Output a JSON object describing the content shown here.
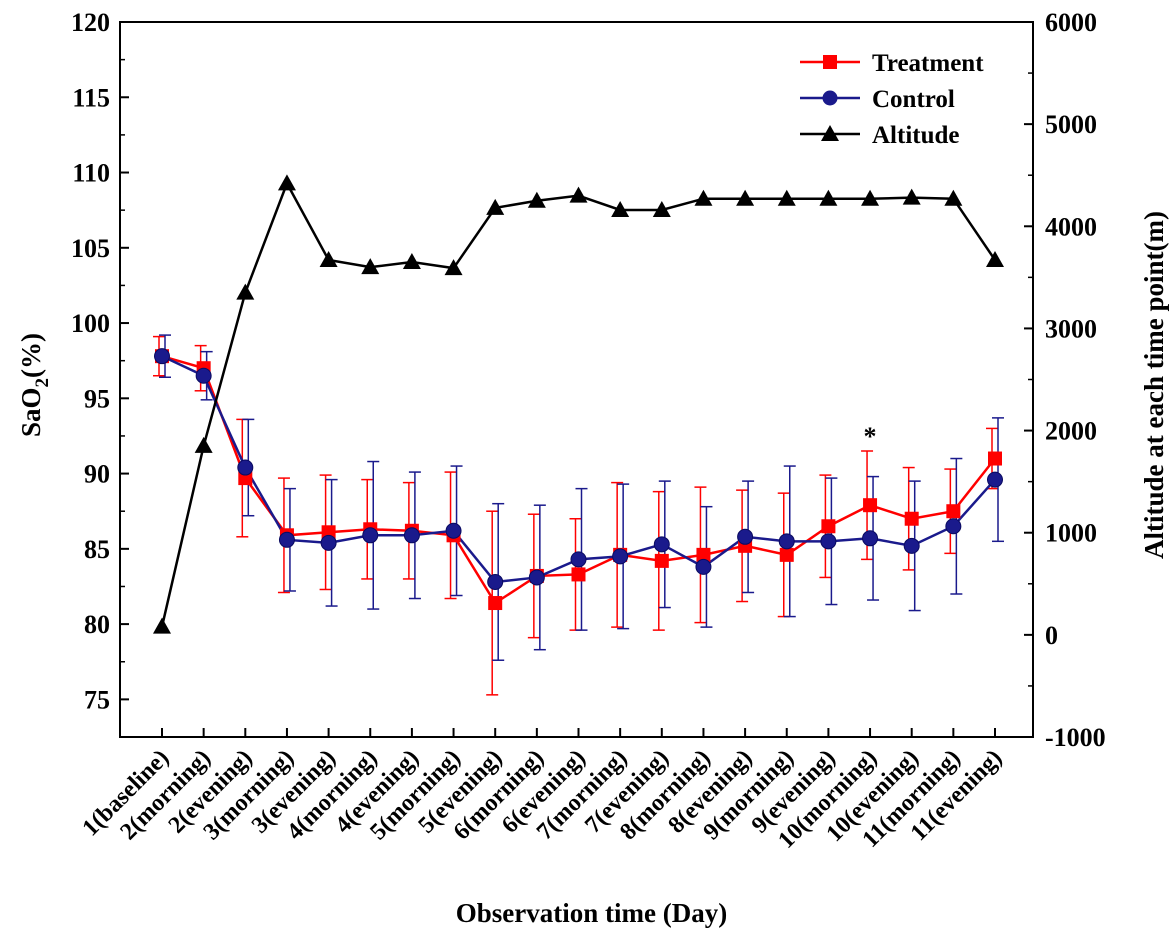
{
  "chart_data": {
    "type": "line",
    "xlabel": "Observation time (Day)",
    "ylabel_left_main": "SaO",
    "ylabel_left_sub": "2",
    "ylabel_left_unit": "(%)",
    "ylabel_right": "Altitude at each time point(m)",
    "categories": [
      "1(baseline)",
      "2(morning)",
      "2(evening)",
      "3(morning)",
      "3(evening)",
      "4(morning)",
      "4(evening)",
      "5(morning)",
      "5(evening)",
      "6(morning)",
      "6(evening)",
      "7(morning)",
      "7(evening)",
      "8(morning)",
      "8(evening)",
      "9(morning)",
      "9(evening)",
      "10(morning)",
      "10(evening)",
      "11(morning)",
      "11(evening)"
    ],
    "y_left": {
      "min": 72.5,
      "max": 120,
      "ticks": [
        75,
        80,
        85,
        90,
        95,
        100,
        105,
        110,
        115,
        120
      ]
    },
    "y_right": {
      "min": -1000,
      "max": 6000,
      "ticks": [
        -1000,
        0,
        1000,
        2000,
        3000,
        4000,
        5000,
        6000
      ]
    },
    "series": [
      {
        "name": "Treatment",
        "axis": "left",
        "color": "#ff0000",
        "marker": "square",
        "values": [
          97.8,
          97.0,
          89.7,
          85.9,
          86.1,
          86.3,
          86.2,
          85.9,
          81.4,
          83.2,
          83.3,
          84.6,
          84.2,
          84.6,
          85.2,
          84.6,
          86.5,
          87.9,
          87.0,
          87.5,
          91.0
        ],
        "errors": [
          1.3,
          1.5,
          3.9,
          3.8,
          3.8,
          3.3,
          3.2,
          4.2,
          6.1,
          4.1,
          3.7,
          4.8,
          4.6,
          4.5,
          3.7,
          4.1,
          3.4,
          3.6,
          3.4,
          2.8,
          2.0
        ]
      },
      {
        "name": "Control",
        "axis": "left",
        "color": "#1a1a8c",
        "marker": "circle",
        "values": [
          97.8,
          96.5,
          90.4,
          85.6,
          85.4,
          85.9,
          85.9,
          86.2,
          82.8,
          83.1,
          84.3,
          84.5,
          85.3,
          83.8,
          85.8,
          85.5,
          85.5,
          85.7,
          85.2,
          86.5,
          89.6
        ],
        "errors": [
          1.4,
          1.6,
          3.2,
          3.4,
          4.2,
          4.9,
          4.2,
          4.3,
          5.2,
          4.8,
          4.7,
          4.8,
          4.2,
          4.0,
          3.7,
          5.0,
          4.2,
          4.1,
          4.3,
          4.5,
          4.1
        ]
      },
      {
        "name": "Altitude",
        "axis": "right",
        "color": "#000000",
        "marker": "triangle",
        "values": [
          80,
          1850,
          3350,
          4420,
          3670,
          3600,
          3650,
          3590,
          4180,
          4250,
          4300,
          4160,
          4160,
          4270,
          4270,
          4270,
          4270,
          4270,
          4280,
          4270,
          3670
        ]
      }
    ],
    "annotations": [
      {
        "text": "*",
        "category_index": 17
      }
    ],
    "legend_position": "top-right",
    "grid": false
  }
}
